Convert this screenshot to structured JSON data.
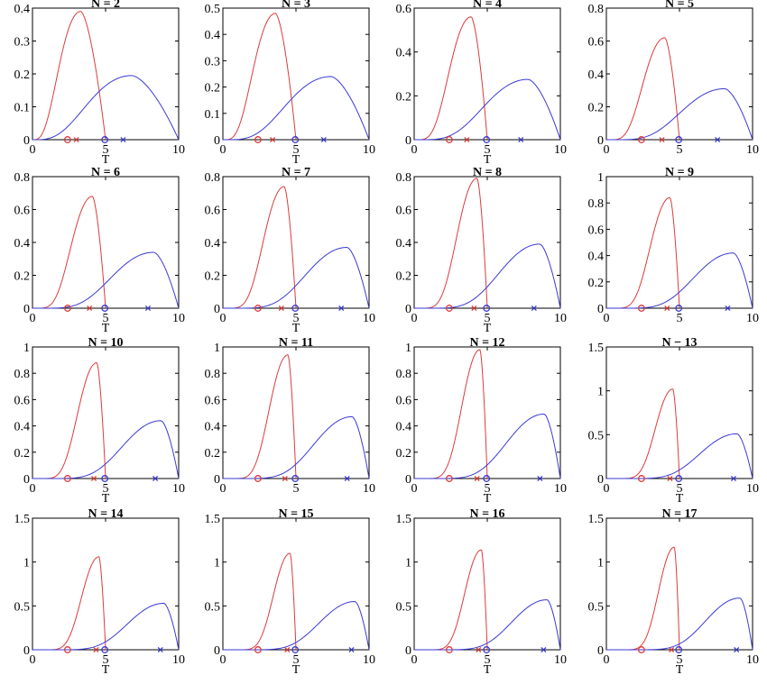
{
  "colors": {
    "red": "#dd3b3b",
    "blue": "#3a3ad6",
    "axis": "#000000"
  },
  "chart_data": [
    {
      "type": "line",
      "title": "N = 2",
      "xlabel": "T",
      "xlim": [
        0,
        10
      ],
      "ylim": [
        0,
        0.4
      ],
      "yticks": [
        "0",
        "0.1",
        "0.2",
        "0.3",
        "0.4"
      ],
      "xticks": [
        "0",
        "5",
        "10"
      ],
      "series": [
        {
          "color": "red",
          "peak_x": 3.3,
          "peak_y": 0.39,
          "end_x": 5
        },
        {
          "color": "blue",
          "peak_x": 6.8,
          "peak_y": 0.195,
          "end_x": 10
        }
      ],
      "markers": [
        {
          "symbol": "o",
          "color": "red",
          "x": 2.4
        },
        {
          "symbol": "x",
          "color": "red",
          "x": 3.0
        },
        {
          "symbol": "o",
          "color": "blue",
          "x": 4.95
        },
        {
          "symbol": "x",
          "color": "blue",
          "x": 6.2
        }
      ]
    },
    {
      "type": "line",
      "title": "N = 3",
      "xlabel": "T",
      "xlim": [
        0,
        10
      ],
      "ylim": [
        0,
        0.5
      ],
      "yticks": [
        "0",
        "0.1",
        "0.2",
        "0.3",
        "0.4",
        "0.5"
      ],
      "xticks": [
        "0",
        "5",
        "10"
      ],
      "series": [
        {
          "color": "red",
          "peak_x": 3.6,
          "peak_y": 0.48,
          "end_x": 5
        },
        {
          "color": "blue",
          "peak_x": 7.4,
          "peak_y": 0.24,
          "end_x": 10
        }
      ],
      "markers": [
        {
          "symbol": "o",
          "color": "red",
          "x": 2.4
        },
        {
          "symbol": "x",
          "color": "red",
          "x": 3.4
        },
        {
          "symbol": "o",
          "color": "blue",
          "x": 4.95
        },
        {
          "symbol": "x",
          "color": "blue",
          "x": 6.9
        }
      ]
    },
    {
      "type": "line",
      "title": "N = 4",
      "xlabel": "T",
      "xlim": [
        0,
        10
      ],
      "ylim": [
        0,
        0.6
      ],
      "yticks": [
        "0",
        "0.2",
        "0.4",
        "0.6"
      ],
      "xticks": [
        "0",
        "5",
        "10"
      ],
      "series": [
        {
          "color": "red",
          "peak_x": 3.9,
          "peak_y": 0.56,
          "end_x": 5
        },
        {
          "color": "blue",
          "peak_x": 7.8,
          "peak_y": 0.275,
          "end_x": 10
        }
      ],
      "markers": [
        {
          "symbol": "o",
          "color": "red",
          "x": 2.4
        },
        {
          "symbol": "x",
          "color": "red",
          "x": 3.6
        },
        {
          "symbol": "o",
          "color": "blue",
          "x": 4.95
        },
        {
          "symbol": "x",
          "color": "blue",
          "x": 7.3
        }
      ]
    },
    {
      "type": "line",
      "title": "N = 5",
      "xlabel": "",
      "xlim": [
        0,
        10
      ],
      "ylim": [
        0,
        0.8
      ],
      "yticks": [
        "0",
        "0.2",
        "0.4",
        "0.6",
        "0.8"
      ],
      "xticks": [
        "0",
        "5",
        "10"
      ],
      "series": [
        {
          "color": "red",
          "peak_x": 4.0,
          "peak_y": 0.62,
          "end_x": 5
        },
        {
          "color": "blue",
          "peak_x": 8.1,
          "peak_y": 0.31,
          "end_x": 10
        }
      ],
      "markers": [
        {
          "symbol": "o",
          "color": "red",
          "x": 2.4
        },
        {
          "symbol": "x",
          "color": "red",
          "x": 3.8
        },
        {
          "symbol": "o",
          "color": "blue",
          "x": 4.95
        },
        {
          "symbol": "x",
          "color": "blue",
          "x": 7.6
        }
      ]
    },
    {
      "type": "line",
      "title": "N = 6",
      "xlabel": "T",
      "xlim": [
        0,
        10
      ],
      "ylim": [
        0,
        0.8
      ],
      "yticks": [
        "0",
        "0.2",
        "0.4",
        "0.6",
        "0.8"
      ],
      "xticks": [
        "0",
        "5",
        "10"
      ],
      "series": [
        {
          "color": "red",
          "peak_x": 4.1,
          "peak_y": 0.68,
          "end_x": 5
        },
        {
          "color": "blue",
          "peak_x": 8.3,
          "peak_y": 0.34,
          "end_x": 10
        }
      ],
      "markers": [
        {
          "symbol": "o",
          "color": "red",
          "x": 2.4
        },
        {
          "symbol": "x",
          "color": "red",
          "x": 3.9
        },
        {
          "symbol": "o",
          "color": "blue",
          "x": 4.95
        },
        {
          "symbol": "x",
          "color": "blue",
          "x": 7.9
        }
      ]
    },
    {
      "type": "line",
      "title": "N = 7",
      "xlabel": "T",
      "xlim": [
        0,
        10
      ],
      "ylim": [
        0,
        0.8
      ],
      "yticks": [
        "0",
        "0.2",
        "0.4",
        "0.6",
        "0.8"
      ],
      "xticks": [
        "0",
        "5",
        "10"
      ],
      "series": [
        {
          "color": "red",
          "peak_x": 4.2,
          "peak_y": 0.74,
          "end_x": 5
        },
        {
          "color": "blue",
          "peak_x": 8.5,
          "peak_y": 0.37,
          "end_x": 10
        }
      ],
      "markers": [
        {
          "symbol": "o",
          "color": "red",
          "x": 2.4
        },
        {
          "symbol": "x",
          "color": "red",
          "x": 4.0
        },
        {
          "symbol": "o",
          "color": "blue",
          "x": 4.95
        },
        {
          "symbol": "x",
          "color": "blue",
          "x": 8.1
        }
      ]
    },
    {
      "type": "line",
      "title": "N = 8",
      "xlabel": "T",
      "xlim": [
        0,
        10
      ],
      "ylim": [
        0,
        0.8
      ],
      "yticks": [
        "0",
        "0.2",
        "0.4",
        "0.6",
        "0.8"
      ],
      "xticks": [
        "0",
        "5",
        "10"
      ],
      "series": [
        {
          "color": "red",
          "peak_x": 4.3,
          "peak_y": 0.79,
          "end_x": 5
        },
        {
          "color": "blue",
          "peak_x": 8.6,
          "peak_y": 0.39,
          "end_x": 10
        }
      ],
      "markers": [
        {
          "symbol": "o",
          "color": "red",
          "x": 2.4
        },
        {
          "symbol": "x",
          "color": "red",
          "x": 4.1
        },
        {
          "symbol": "o",
          "color": "blue",
          "x": 4.95
        },
        {
          "symbol": "x",
          "color": "blue",
          "x": 8.2
        }
      ]
    },
    {
      "type": "line",
      "title": "N = 9",
      "xlabel": "",
      "xlim": [
        0,
        10
      ],
      "ylim": [
        0,
        1
      ],
      "yticks": [
        "0",
        "0.2",
        "0.4",
        "0.6",
        "0.8",
        "1"
      ],
      "xticks": [
        "0",
        "5",
        "10"
      ],
      "series": [
        {
          "color": "red",
          "peak_x": 4.35,
          "peak_y": 0.84,
          "end_x": 5
        },
        {
          "color": "blue",
          "peak_x": 8.7,
          "peak_y": 0.42,
          "end_x": 10
        }
      ],
      "markers": [
        {
          "symbol": "o",
          "color": "red",
          "x": 2.4
        },
        {
          "symbol": "x",
          "color": "red",
          "x": 4.15
        },
        {
          "symbol": "o",
          "color": "blue",
          "x": 4.95
        },
        {
          "symbol": "x",
          "color": "blue",
          "x": 8.3
        }
      ]
    },
    {
      "type": "line",
      "title": "N = 10",
      "xlabel": "T",
      "xlim": [
        0,
        10
      ],
      "ylim": [
        0,
        1
      ],
      "yticks": [
        "0",
        "0.2",
        "0.4",
        "0.6",
        "0.8",
        "1"
      ],
      "xticks": [
        "0",
        "5",
        "10"
      ],
      "series": [
        {
          "color": "red",
          "peak_x": 4.4,
          "peak_y": 0.88,
          "end_x": 5
        },
        {
          "color": "blue",
          "peak_x": 8.8,
          "peak_y": 0.44,
          "end_x": 10
        }
      ],
      "markers": [
        {
          "symbol": "o",
          "color": "red",
          "x": 2.4
        },
        {
          "symbol": "x",
          "color": "red",
          "x": 4.2
        },
        {
          "symbol": "o",
          "color": "blue",
          "x": 4.95
        },
        {
          "symbol": "x",
          "color": "blue",
          "x": 8.4
        }
      ]
    },
    {
      "type": "line",
      "title": "N = 11",
      "xlabel": "",
      "xlim": [
        0,
        10
      ],
      "ylim": [
        0,
        1
      ],
      "yticks": [
        "0",
        "0.2",
        "0.4",
        "0.6",
        "0.8",
        "1"
      ],
      "xticks": [
        "0",
        "5",
        "10"
      ],
      "series": [
        {
          "color": "red",
          "peak_x": 4.45,
          "peak_y": 0.94,
          "end_x": 5
        },
        {
          "color": "blue",
          "peak_x": 8.85,
          "peak_y": 0.47,
          "end_x": 10
        }
      ],
      "markers": [
        {
          "symbol": "o",
          "color": "red",
          "x": 2.4
        },
        {
          "symbol": "x",
          "color": "red",
          "x": 4.25
        },
        {
          "symbol": "o",
          "color": "blue",
          "x": 4.95
        },
        {
          "symbol": "x",
          "color": "blue",
          "x": 8.5
        }
      ]
    },
    {
      "type": "line",
      "title": "N = 12",
      "xlabel": "T",
      "xlim": [
        0,
        10
      ],
      "ylim": [
        0,
        1
      ],
      "yticks": [
        "0",
        "0.2",
        "0.4",
        "0.6",
        "0.8",
        "1"
      ],
      "xticks": [
        "0",
        "5",
        "10"
      ],
      "series": [
        {
          "color": "red",
          "peak_x": 4.5,
          "peak_y": 0.98,
          "end_x": 5
        },
        {
          "color": "blue",
          "peak_x": 8.9,
          "peak_y": 0.49,
          "end_x": 10
        }
      ],
      "markers": [
        {
          "symbol": "o",
          "color": "red",
          "x": 2.4
        },
        {
          "symbol": "x",
          "color": "red",
          "x": 4.3
        },
        {
          "symbol": "o",
          "color": "blue",
          "x": 4.95
        },
        {
          "symbol": "x",
          "color": "blue",
          "x": 8.6
        }
      ]
    },
    {
      "type": "line",
      "title": "N − 13",
      "xlabel": "T",
      "xlim": [
        0,
        10
      ],
      "ylim": [
        0,
        1.5
      ],
      "yticks": [
        "0",
        "0.5",
        "1",
        "1.5"
      ],
      "xticks": [
        "0",
        "5",
        "10"
      ],
      "series": [
        {
          "color": "red",
          "peak_x": 4.55,
          "peak_y": 1.02,
          "end_x": 5
        },
        {
          "color": "blue",
          "peak_x": 8.95,
          "peak_y": 0.51,
          "end_x": 10
        }
      ],
      "markers": [
        {
          "symbol": "o",
          "color": "red",
          "x": 2.4
        },
        {
          "symbol": "x",
          "color": "red",
          "x": 4.35
        },
        {
          "symbol": "o",
          "color": "blue",
          "x": 4.95
        },
        {
          "symbol": "x",
          "color": "blue",
          "x": 8.7
        }
      ]
    },
    {
      "type": "line",
      "title": "N = 14",
      "xlabel": "T",
      "xlim": [
        0,
        10
      ],
      "ylim": [
        0,
        1.5
      ],
      "yticks": [
        "0",
        "0.5",
        "1",
        "1.5"
      ],
      "xticks": [
        "0",
        "5",
        "10"
      ],
      "series": [
        {
          "color": "red",
          "peak_x": 4.55,
          "peak_y": 1.06,
          "end_x": 5
        },
        {
          "color": "blue",
          "peak_x": 9.0,
          "peak_y": 0.53,
          "end_x": 10
        }
      ],
      "markers": [
        {
          "symbol": "o",
          "color": "red",
          "x": 2.4
        },
        {
          "symbol": "x",
          "color": "red",
          "x": 4.35
        },
        {
          "symbol": "o",
          "color": "blue",
          "x": 4.95
        },
        {
          "symbol": "x",
          "color": "blue",
          "x": 8.75
        }
      ]
    },
    {
      "type": "line",
      "title": "N = 15",
      "xlabel": "T",
      "xlim": [
        0,
        10
      ],
      "ylim": [
        0,
        1.5
      ],
      "yticks": [
        "0",
        "0.5",
        "1",
        "1.5"
      ],
      "xticks": [
        "0",
        "5",
        "10"
      ],
      "series": [
        {
          "color": "red",
          "peak_x": 4.6,
          "peak_y": 1.1,
          "end_x": 5
        },
        {
          "color": "blue",
          "peak_x": 9.05,
          "peak_y": 0.55,
          "end_x": 10
        }
      ],
      "markers": [
        {
          "symbol": "o",
          "color": "red",
          "x": 2.4
        },
        {
          "symbol": "x",
          "color": "red",
          "x": 4.4
        },
        {
          "symbol": "o",
          "color": "blue",
          "x": 4.95
        },
        {
          "symbol": "x",
          "color": "blue",
          "x": 8.8
        }
      ]
    },
    {
      "type": "line",
      "title": "N = 16",
      "xlabel": "T",
      "xlim": [
        0,
        10
      ],
      "ylim": [
        0,
        1.5
      ],
      "yticks": [
        "0",
        "0.5",
        "1",
        "1.5"
      ],
      "xticks": [
        "0",
        "5",
        "10"
      ],
      "series": [
        {
          "color": "red",
          "peak_x": 4.6,
          "peak_y": 1.14,
          "end_x": 5
        },
        {
          "color": "blue",
          "peak_x": 9.1,
          "peak_y": 0.57,
          "end_x": 10
        }
      ],
      "markers": [
        {
          "symbol": "o",
          "color": "red",
          "x": 2.4
        },
        {
          "symbol": "x",
          "color": "red",
          "x": 4.4
        },
        {
          "symbol": "o",
          "color": "blue",
          "x": 4.95
        },
        {
          "symbol": "x",
          "color": "blue",
          "x": 8.85
        }
      ]
    },
    {
      "type": "line",
      "title": "N = 17",
      "xlabel": "T",
      "xlim": [
        0,
        10
      ],
      "ylim": [
        0,
        1.5
      ],
      "yticks": [
        "0",
        "0.5",
        "1",
        "1.5"
      ],
      "xticks": [
        "0",
        "5",
        "10"
      ],
      "series": [
        {
          "color": "red",
          "peak_x": 4.65,
          "peak_y": 1.17,
          "end_x": 5
        },
        {
          "color": "blue",
          "peak_x": 9.15,
          "peak_y": 0.59,
          "end_x": 10
        }
      ],
      "markers": [
        {
          "symbol": "o",
          "color": "red",
          "x": 2.4
        },
        {
          "symbol": "x",
          "color": "red",
          "x": 4.45
        },
        {
          "symbol": "o",
          "color": "blue",
          "x": 4.95
        },
        {
          "symbol": "x",
          "color": "blue",
          "x": 8.9
        }
      ]
    }
  ]
}
